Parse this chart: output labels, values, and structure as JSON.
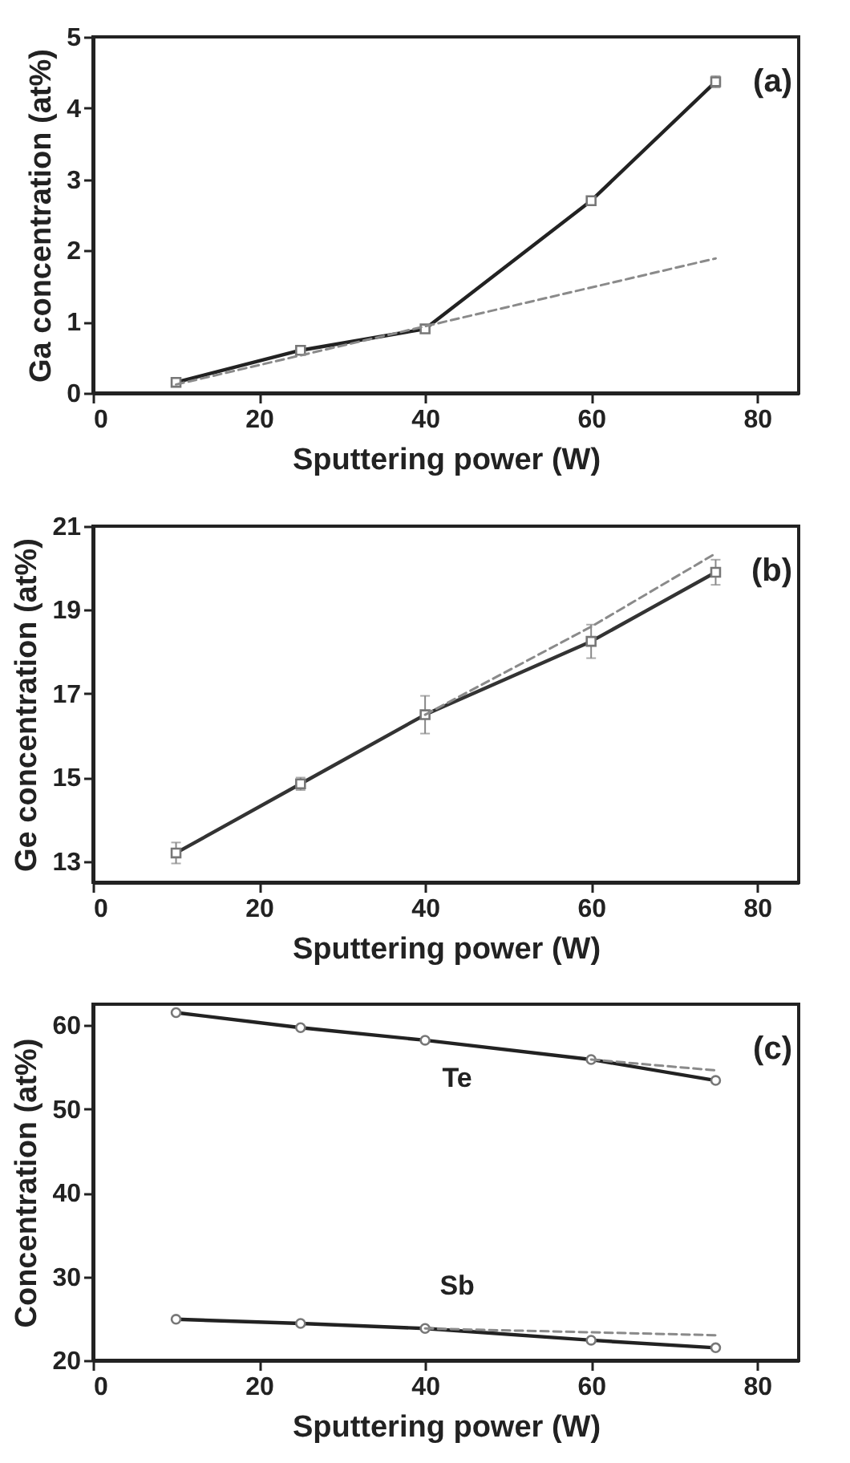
{
  "chart_data": [
    {
      "type": "line",
      "xlabel": "Sputtering power (W)",
      "ylabel": "Ga concentration (at%)",
      "annotations": [
        "(a)"
      ],
      "xlim": [
        0,
        85
      ],
      "xticks": [
        0,
        20,
        40,
        60,
        80
      ],
      "ylim": [
        0,
        5
      ],
      "yticks": [
        0,
        1,
        2,
        3,
        4,
        5
      ],
      "marker": "square",
      "grid": false,
      "series": [
        {
          "color": "#222222",
          "x": [
            10,
            25,
            40,
            60,
            75
          ],
          "values": [
            0.15,
            0.6,
            0.9,
            2.7,
            4.37
          ],
          "errors": [
            0.05,
            0.04,
            0.05,
            0.06,
            0.08
          ]
        },
        {
          "type": "line",
          "color": "#8a8a8a",
          "line_style": "dashed",
          "marker": "none",
          "x": [
            10,
            75
          ],
          "values": [
            0.12,
            1.89
          ]
        }
      ]
    },
    {
      "type": "line",
      "xlabel": "Sputtering power (W)",
      "ylabel": "Ge concentration (at%)",
      "annotations": [
        "(b)"
      ],
      "xlim": [
        0,
        85
      ],
      "xticks": [
        0,
        20,
        40,
        60,
        80
      ],
      "ylim": [
        12.5,
        21
      ],
      "yticks": [
        13,
        15,
        17,
        19,
        21
      ],
      "marker": "square",
      "grid": false,
      "series": [
        {
          "color": "#333333",
          "x": [
            10,
            25,
            40,
            60,
            75
          ],
          "values": [
            13.2,
            14.85,
            16.5,
            18.25,
            19.9
          ],
          "errors": [
            0.25,
            0.15,
            0.45,
            0.4,
            0.3
          ]
        },
        {
          "type": "line",
          "color": "#8a8a8a",
          "line_style": "dashed",
          "marker": "none",
          "x": [
            40,
            60,
            75
          ],
          "values": [
            16.5,
            18.6,
            20.35
          ]
        }
      ]
    },
    {
      "type": "line",
      "xlabel": "Sputtering power (W)",
      "ylabel": "Concentration (at%)",
      "annotations": [
        "(c)"
      ],
      "xlim": [
        0,
        85
      ],
      "xticks": [
        0,
        20,
        40,
        60,
        80
      ],
      "ylim": [
        20,
        62.5
      ],
      "yticks": [
        20,
        30,
        40,
        50,
        60
      ],
      "marker": "circle",
      "grid": false,
      "series": [
        {
          "name": "Te",
          "color": "#222222",
          "x": [
            10,
            25,
            40,
            60,
            75
          ],
          "values": [
            61.5,
            59.7,
            58.2,
            55.9,
            53.4
          ]
        },
        {
          "type": "line",
          "color": "#8a8a8a",
          "line_style": "dashed",
          "marker": "none",
          "x": [
            60,
            75
          ],
          "values": [
            55.9,
            54.6
          ]
        },
        {
          "name": "Sb",
          "color": "#222222",
          "x": [
            10,
            25,
            40,
            60,
            75
          ],
          "values": [
            24.9,
            24.4,
            23.8,
            22.4,
            21.5
          ]
        },
        {
          "type": "line",
          "color": "#8a8a8a",
          "line_style": "dashed",
          "marker": "none",
          "x": [
            40,
            75
          ],
          "values": [
            23.8,
            23.0
          ]
        }
      ]
    }
  ]
}
